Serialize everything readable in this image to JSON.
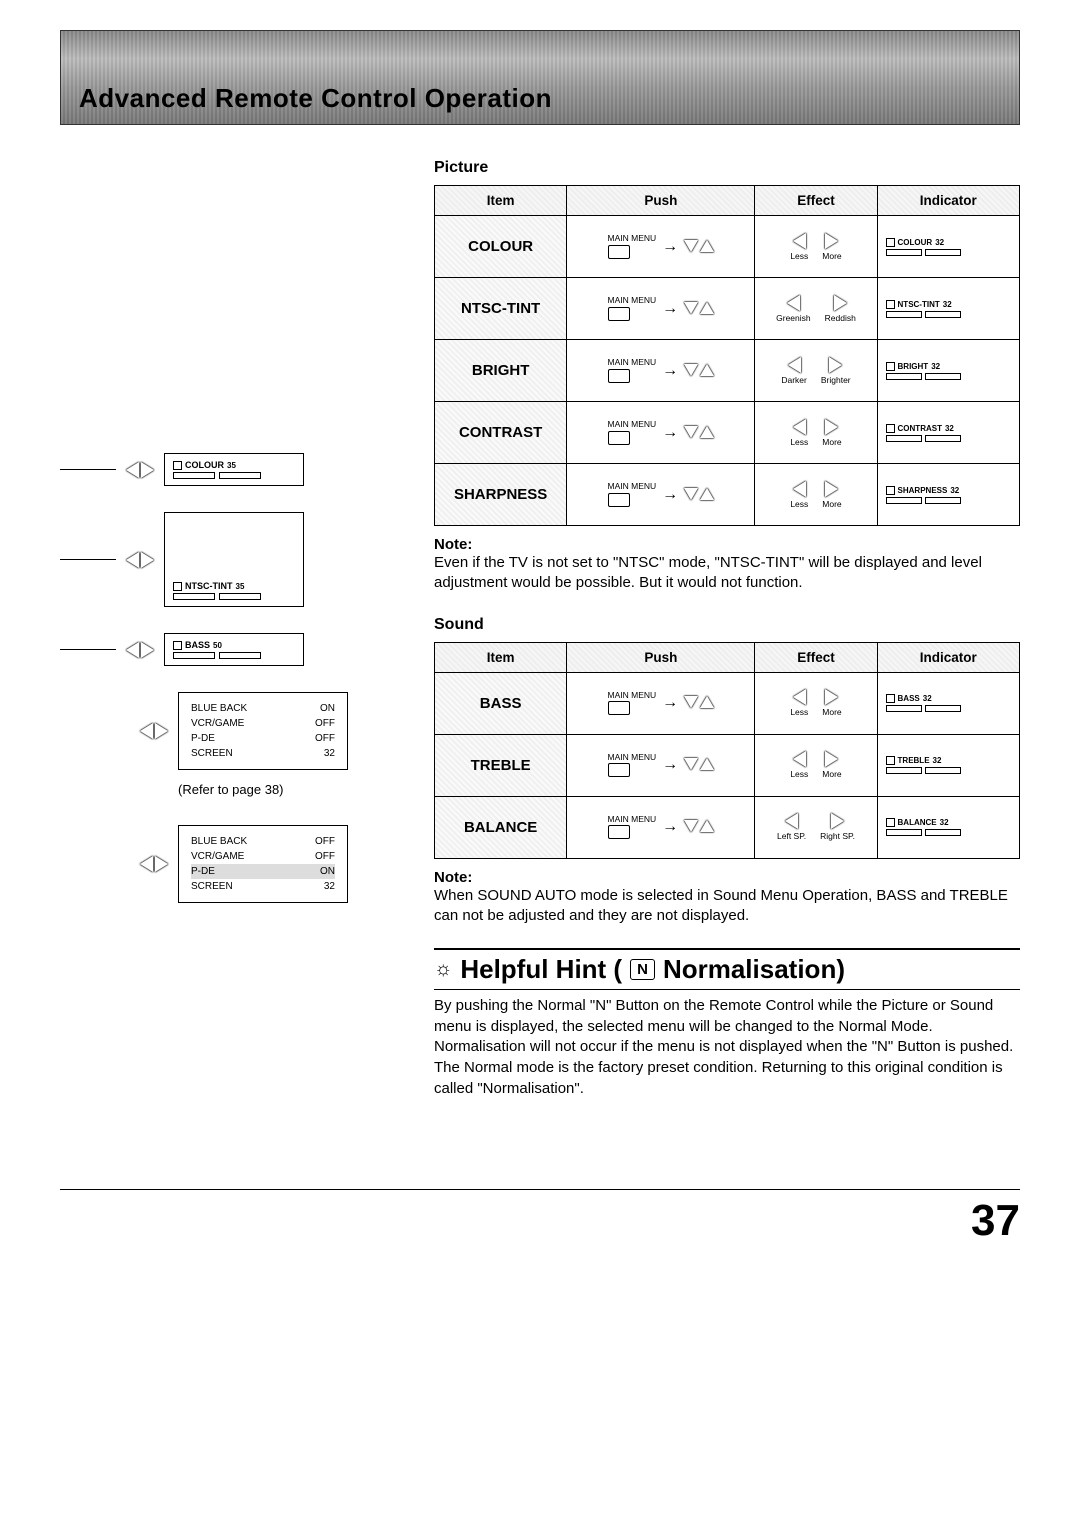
{
  "banner_title": "Advanced Remote Control Operation",
  "picture": {
    "title": "Picture",
    "columns": [
      "Item",
      "Push",
      "Effect",
      "Indicator"
    ],
    "rows": [
      {
        "item": "COLOUR",
        "push_label": "MAIN MENU",
        "eff_left": "Less",
        "eff_right": "More",
        "ind_name": "COLOUR",
        "ind_val": "32"
      },
      {
        "item": "NTSC-TINT",
        "push_label": "MAIN MENU",
        "eff_left": "Greenish",
        "eff_right": "Reddish",
        "ind_name": "NTSC-TINT",
        "ind_val": "32"
      },
      {
        "item": "BRIGHT",
        "push_label": "MAIN MENU",
        "eff_left": "Darker",
        "eff_right": "Brighter",
        "ind_name": "BRIGHT",
        "ind_val": "32"
      },
      {
        "item": "CONTRAST",
        "push_label": "MAIN MENU",
        "eff_left": "Less",
        "eff_right": "More",
        "ind_name": "CONTRAST",
        "ind_val": "32"
      },
      {
        "item": "SHARPNESS",
        "push_label": "MAIN MENU",
        "eff_left": "Less",
        "eff_right": "More",
        "ind_name": "SHARPNESS",
        "ind_val": "32"
      }
    ],
    "note_title": "Note:",
    "note_body": "Even if the TV is not set to \"NTSC\" mode, \"NTSC-TINT\" will be displayed and level adjustment would be possible. But it would not function."
  },
  "sound": {
    "title": "Sound",
    "columns": [
      "Item",
      "Push",
      "Effect",
      "Indicator"
    ],
    "rows": [
      {
        "item": "BASS",
        "push_label": "MAIN MENU",
        "eff_left": "Less",
        "eff_right": "More",
        "ind_name": "BASS",
        "ind_val": "32"
      },
      {
        "item": "TREBLE",
        "push_label": "MAIN MENU",
        "eff_left": "Less",
        "eff_right": "More",
        "ind_name": "TREBLE",
        "ind_val": "32"
      },
      {
        "item": "BALANCE",
        "push_label": "MAIN MENU",
        "eff_left": "Left SP.",
        "eff_right": "Right SP.",
        "ind_name": "BALANCE",
        "ind_val": "32"
      }
    ],
    "note_title": "Note:",
    "note_body": "When SOUND AUTO mode is selected in Sound Menu Operation, BASS and TREBLE can not be adjusted and they are not displayed."
  },
  "hint": {
    "title_left": "Helpful Hint (",
    "badge": "N",
    "title_right": " Normalisation)",
    "body": "By pushing the Normal \"N\" Button on the Remote Control while the Picture or Sound menu is displayed, the selected menu will be changed to the Normal Mode.\nNormalisation will not occur if the menu is not displayed when the \"N\" Button is pushed.\nThe Normal mode is the factory preset condition. Returning to this original condition is called \"Normalisation\"."
  },
  "left": {
    "colour": {
      "name": "COLOUR",
      "val": "35"
    },
    "ntsc": {
      "name": "NTSC-TINT",
      "val": "35"
    },
    "bass": {
      "name": "BASS",
      "val": "50"
    },
    "settings1": {
      "rows": [
        {
          "k": "BLUE BACK",
          "v": "ON"
        },
        {
          "k": "VCR/GAME",
          "v": "OFF"
        },
        {
          "k": "P-DE",
          "v": "OFF"
        },
        {
          "k": "SCREEN",
          "v": "32"
        }
      ]
    },
    "ref": "(Refer to page 38)",
    "settings2": {
      "rows": [
        {
          "k": "BLUE BACK",
          "v": "OFF"
        },
        {
          "k": "VCR/GAME",
          "v": "OFF"
        },
        {
          "k": "P-DE",
          "v": "ON",
          "hl": true
        },
        {
          "k": "SCREEN",
          "v": "32"
        }
      ]
    }
  },
  "page_number": "37"
}
